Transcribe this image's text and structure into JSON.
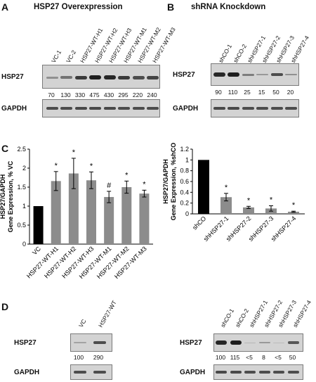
{
  "panels": {
    "A": {
      "letter": "A",
      "title": "HSP27 Overexpression",
      "lanes": [
        "VC-1",
        "VC-2",
        "HSP27-WT-H1",
        "HSP27-WT-H2",
        "HSP27-WT-H3",
        "HSP27-WT-M1",
        "HSP27-WT-M2",
        "HSP27-WT-M3"
      ],
      "protein1": "HSP27",
      "protein2": "GAPDH",
      "quant": [
        "70",
        "130",
        "330",
        "475",
        "430",
        "295",
        "220",
        "240"
      ]
    },
    "B": {
      "letter": "B",
      "title": "shRNA Knockdown",
      "lanes": [
        "shCO-1",
        "shCO-2",
        "shHSP27-1",
        "shHSP27-2",
        "shHSP27-3",
        "shHSP27-4"
      ],
      "protein1": "HSP27",
      "protein2": "GAPDH",
      "quant": [
        "90",
        "110",
        "25",
        "15",
        "50",
        "20"
      ]
    },
    "C": {
      "letter": "C"
    },
    "D": {
      "letter": "D",
      "left": {
        "lanes": [
          "VC",
          "HSP27-WT"
        ],
        "protein1": "HSP27",
        "protein2": "GAPDH",
        "quant": [
          "100",
          "290"
        ]
      },
      "right": {
        "lanes": [
          "shCO-1",
          "shCO-2",
          "shHSP27-1",
          "shHSP27-2",
          "shHSP27-3",
          "shHSP27-4"
        ],
        "protein1": "HSP27",
        "protein2": "GAPDH",
        "quant": [
          "100",
          "115",
          "<5",
          "8",
          "<5",
          "50"
        ]
      }
    }
  },
  "colors": {
    "control_bar": "#000000",
    "treatment_bar": "#8c8c8c"
  },
  "chart_data": [
    {
      "type": "bar",
      "ylabel": "HSP27/GAPDH Gene Expression, % VC",
      "ylim": [
        0,
        2.5
      ],
      "yticks": [
        "0",
        "0.5",
        "1",
        "1.5",
        "2",
        "2.5"
      ],
      "categories": [
        "VC",
        "HSP27-WT-H1",
        "HSP27-WT-H2",
        "HSP27-WT-H3",
        "HSP27-WT-M1",
        "HSP27-WT-M2",
        "HSP27-WT-M3"
      ],
      "values": [
        1.0,
        1.66,
        1.86,
        1.68,
        1.24,
        1.5,
        1.33
      ],
      "errors": [
        0,
        0.25,
        0.4,
        0.22,
        0.15,
        0.16,
        0.09
      ],
      "annotations": [
        "",
        "*",
        "*",
        "*",
        "#",
        "*",
        "*"
      ],
      "bar_colors": [
        "#000000",
        "#8c8c8c",
        "#8c8c8c",
        "#8c8c8c",
        "#8c8c8c",
        "#8c8c8c",
        "#8c8c8c"
      ]
    },
    {
      "type": "bar",
      "ylabel": "HSP27/GAPDH Gene Expression, %shCO",
      "ylim": [
        0,
        1.2
      ],
      "yticks": [
        "0",
        "0.2",
        "0.4",
        "0.6",
        "0.8",
        "1",
        "1.2"
      ],
      "categories": [
        "shCO",
        "shHSP27-1",
        "shHSP27-2",
        "shHSP27-3",
        "shHSP27-4"
      ],
      "values": [
        1.0,
        0.31,
        0.12,
        0.1,
        0.04
      ],
      "errors": [
        0,
        0.07,
        0.02,
        0.05,
        0.01
      ],
      "annotations": [
        "",
        "*",
        "*",
        "*",
        "*"
      ],
      "bar_colors": [
        "#000000",
        "#8c8c8c",
        "#8c8c8c",
        "#8c8c8c",
        "#8c8c8c"
      ]
    }
  ]
}
